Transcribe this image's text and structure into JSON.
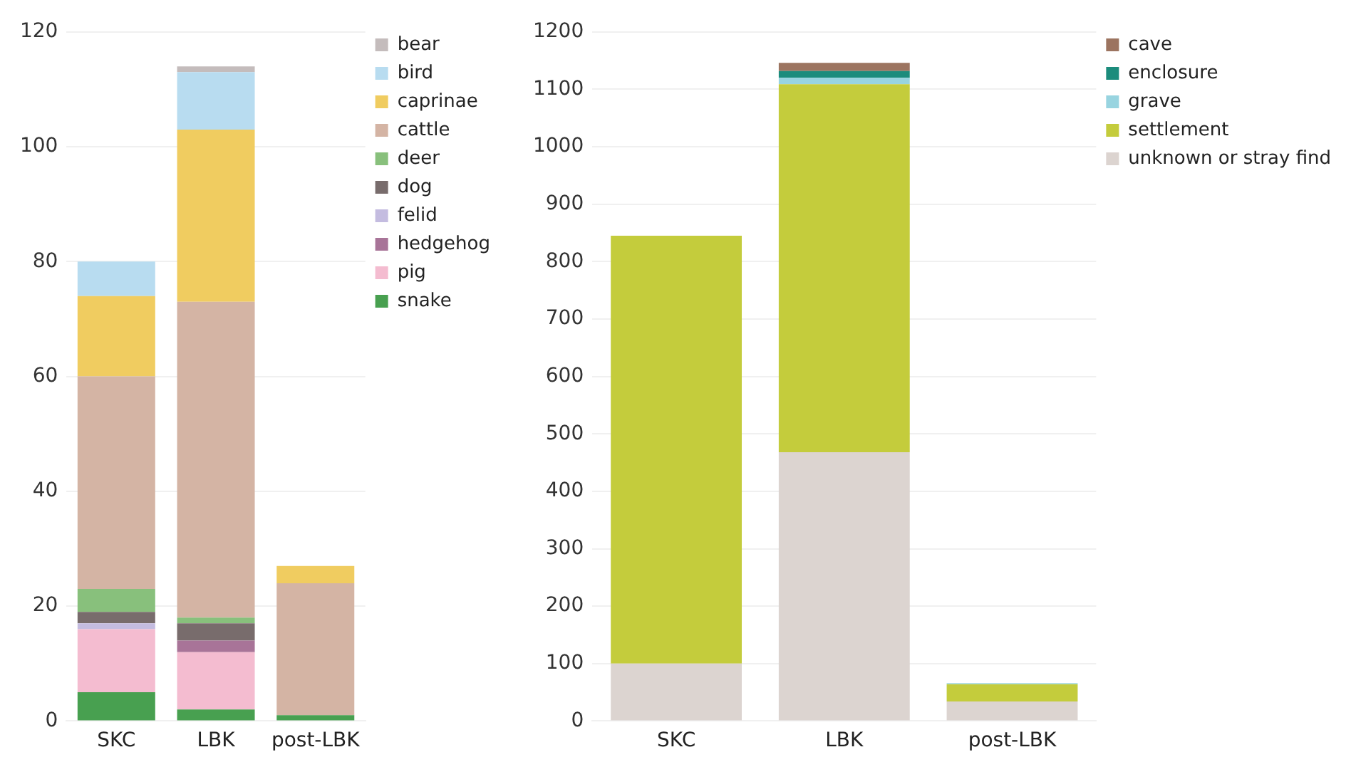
{
  "chart_data": [
    {
      "type": "bar",
      "stacked": true,
      "categories": [
        "SKC",
        "LBK",
        "post-LBK"
      ],
      "series": [
        {
          "name": "snake",
          "color": "#48a050",
          "values": [
            5,
            2,
            1
          ]
        },
        {
          "name": "pig",
          "color": "#f4bcd0",
          "values": [
            11,
            10,
            0
          ]
        },
        {
          "name": "hedgehog",
          "color": "#a87498",
          "values": [
            0,
            2,
            0
          ]
        },
        {
          "name": "felid",
          "color": "#c4bce0",
          "values": [
            1,
            0,
            0
          ]
        },
        {
          "name": "dog",
          "color": "#786c6c",
          "values": [
            2,
            3,
            0
          ]
        },
        {
          "name": "deer",
          "color": "#88c07c",
          "values": [
            4,
            1,
            0
          ]
        },
        {
          "name": "cattle",
          "color": "#d4b4a4",
          "values": [
            37,
            55,
            23
          ]
        },
        {
          "name": "caprinae",
          "color": "#f0cc60",
          "values": [
            14,
            30,
            3
          ]
        },
        {
          "name": "bird",
          "color": "#b8dcf0",
          "values": [
            6,
            10,
            0
          ]
        },
        {
          "name": "bear",
          "color": "#c4bcbc",
          "values": [
            0,
            1,
            0
          ]
        }
      ],
      "ylim": [
        0,
        120
      ],
      "yticks": [
        0,
        20,
        40,
        60,
        80,
        100,
        120
      ],
      "grid": "y",
      "legend": "top right"
    },
    {
      "type": "bar",
      "stacked": true,
      "categories": [
        "SKC",
        "LBK",
        "post-LBK"
      ],
      "series": [
        {
          "name": "unknown or stray find",
          "color": "#dcd4d0",
          "values": [
            100,
            468,
            34
          ]
        },
        {
          "name": "settlement",
          "color": "#c4cc3c",
          "values": [
            745,
            641,
            30
          ]
        },
        {
          "name": "grave",
          "color": "#98d4e0",
          "values": [
            0,
            11,
            2
          ]
        },
        {
          "name": "enclosure",
          "color": "#1c8c7c",
          "values": [
            0,
            12,
            0
          ]
        },
        {
          "name": "cave",
          "color": "#9c7460",
          "values": [
            0,
            14,
            0
          ]
        }
      ],
      "ylim": [
        0,
        1200
      ],
      "yticks": [
        0,
        100,
        200,
        300,
        400,
        500,
        600,
        700,
        800,
        900,
        1000,
        1100,
        1200
      ],
      "grid": "y",
      "legend": "top right"
    }
  ]
}
